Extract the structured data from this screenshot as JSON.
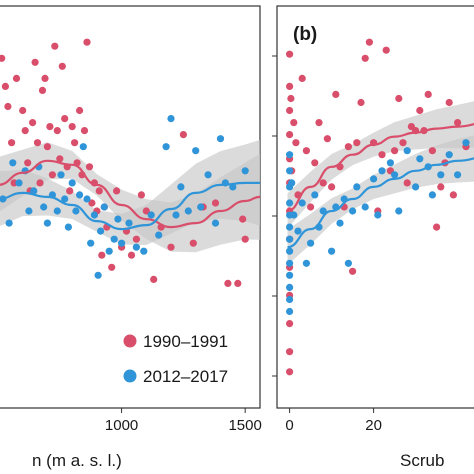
{
  "colors": {
    "series_1990": "#d94e6a",
    "series_2012": "#2f95d8",
    "ribbon": "#c8c8c8",
    "axis": "#333333"
  },
  "chart_data": [
    {
      "type": "scatter",
      "panel_label": "",
      "xlabel": "n (m a. s. l.)",
      "ylabel": "",
      "xlim": [
        500,
        1560
      ],
      "ylim": [
        0,
        10
      ],
      "x_ticks": [
        {
          "value": 1000,
          "label": "1000"
        },
        {
          "value": 1500,
          "label": "1500"
        }
      ],
      "y_ticks": [],
      "grid": false,
      "legend_position": "bottom-right",
      "series": [
        {
          "name": "1990–1991",
          "color": "#d94e6a",
          "points": [
            [
              515,
              8.7
            ],
            [
              530,
              8.0
            ],
            [
              540,
              7.5
            ],
            [
              555,
              6.6
            ],
            [
              565,
              5.6
            ],
            [
              575,
              8.2
            ],
            [
              600,
              7.4
            ],
            [
              610,
              6.9
            ],
            [
              620,
              6.1
            ],
            [
              630,
              5.4
            ],
            [
              640,
              7.1
            ],
            [
              650,
              8.6
            ],
            [
              660,
              6.6
            ],
            [
              670,
              5.6
            ],
            [
              680,
              7.9
            ],
            [
              690,
              8.2
            ],
            [
              700,
              6.5
            ],
            [
              710,
              7.0
            ],
            [
              720,
              5.8
            ],
            [
              730,
              9.0
            ],
            [
              740,
              6.9
            ],
            [
              750,
              6.2
            ],
            [
              760,
              8.5
            ],
            [
              770,
              7.2
            ],
            [
              780,
              6.0
            ],
            [
              790,
              5.4
            ],
            [
              800,
              7.0
            ],
            [
              810,
              6.6
            ],
            [
              820,
              6.1
            ],
            [
              830,
              7.4
            ],
            [
              840,
              5.8
            ],
            [
              850,
              6.9
            ],
            [
              860,
              9.1
            ],
            [
              870,
              6.0
            ],
            [
              880,
              5.1
            ],
            [
              890,
              5.6
            ],
            [
              900,
              4.9
            ],
            [
              910,
              5.4
            ],
            [
              920,
              3.8
            ],
            [
              930,
              5.0
            ],
            [
              940,
              4.5
            ],
            [
              960,
              3.5
            ],
            [
              980,
              5.4
            ],
            [
              1000,
              4.0
            ],
            [
              1020,
              4.4
            ],
            [
              1040,
              3.8
            ],
            [
              1060,
              4.2
            ],
            [
              1080,
              5.3
            ],
            [
              1100,
              4.9
            ],
            [
              1130,
              3.2
            ],
            [
              1160,
              4.5
            ],
            [
              1200,
              4.0
            ],
            [
              1250,
              6.8
            ],
            [
              1290,
              4.1
            ],
            [
              1330,
              5.0
            ],
            [
              1380,
              5.1
            ],
            [
              1430,
              3.1
            ],
            [
              1470,
              3.1
            ],
            [
              1490,
              4.7
            ],
            [
              1500,
              4.2
            ]
          ],
          "smooth": [
            [
              500,
              5.55
            ],
            [
              600,
              5.85
            ],
            [
              700,
              6.15
            ],
            [
              800,
              6.05
            ],
            [
              900,
              5.55
            ],
            [
              1000,
              5.05
            ],
            [
              1100,
              4.7
            ],
            [
              1200,
              4.5
            ],
            [
              1300,
              4.6
            ],
            [
              1400,
              4.9
            ],
            [
              1500,
              5.15
            ],
            [
              1560,
              5.25
            ]
          ]
        },
        {
          "name": "2012–2017",
          "color": "#2f95d8",
          "points": [
            [
              520,
              5.2
            ],
            [
              545,
              4.6
            ],
            [
              560,
              6.1
            ],
            [
              585,
              5.6
            ],
            [
              610,
              5.9
            ],
            [
              625,
              4.9
            ],
            [
              645,
              5.4
            ],
            [
              665,
              6.0
            ],
            [
              685,
              5.0
            ],
            [
              700,
              4.6
            ],
            [
              720,
              5.3
            ],
            [
              740,
              4.9
            ],
            [
              755,
              5.8
            ],
            [
              770,
              5.2
            ],
            [
              785,
              4.5
            ],
            [
              800,
              5.6
            ],
            [
              815,
              4.9
            ],
            [
              830,
              5.3
            ],
            [
              845,
              6.5
            ],
            [
              860,
              5.2
            ],
            [
              875,
              4.1
            ],
            [
              890,
              4.8
            ],
            [
              905,
              3.3
            ],
            [
              915,
              4.4
            ],
            [
              930,
              5.0
            ],
            [
              950,
              3.9
            ],
            [
              970,
              4.2
            ],
            [
              985,
              4.7
            ],
            [
              1000,
              4.1
            ],
            [
              1030,
              4.6
            ],
            [
              1060,
              4.0
            ],
            [
              1090,
              3.9
            ],
            [
              1120,
              4.8
            ],
            [
              1150,
              4.3
            ],
            [
              1180,
              6.5
            ],
            [
              1200,
              7.2
            ],
            [
              1220,
              4.8
            ],
            [
              1240,
              5.5
            ],
            [
              1270,
              4.9
            ],
            [
              1300,
              6.4
            ],
            [
              1320,
              5.0
            ],
            [
              1350,
              5.8
            ],
            [
              1380,
              4.6
            ],
            [
              1400,
              6.7
            ],
            [
              1420,
              5.6
            ],
            [
              1450,
              5.5
            ],
            [
              1500,
              5.9
            ]
          ],
          "smooth": [
            [
              500,
              5.2
            ],
            [
              600,
              5.35
            ],
            [
              700,
              5.25
            ],
            [
              800,
              5.05
            ],
            [
              900,
              4.65
            ],
            [
              1000,
              4.45
            ],
            [
              1100,
              4.55
            ],
            [
              1200,
              4.95
            ],
            [
              1300,
              5.35
            ],
            [
              1400,
              5.55
            ],
            [
              1500,
              5.6
            ],
            [
              1560,
              5.6
            ]
          ]
        }
      ]
    },
    {
      "type": "scatter",
      "panel_label": "(b)",
      "xlabel": "Scrub",
      "ylabel": "",
      "xlim": [
        -3,
        47
      ],
      "ylim": [
        0,
        10
      ],
      "x_ticks": [
        {
          "value": 0,
          "label": "0"
        },
        {
          "value": 20,
          "label": "20"
        }
      ],
      "y_ticks": [],
      "grid": false,
      "legend_position": "",
      "series": [
        {
          "name": "1990–1991",
          "color": "#d94e6a",
          "points": [
            [
              0,
              8.8
            ],
            [
              0,
              8.0
            ],
            [
              0,
              7.4
            ],
            [
              0,
              6.8
            ],
            [
              0,
              6.2
            ],
            [
              0,
              5.6
            ],
            [
              0,
              4.9
            ],
            [
              0,
              4.2
            ],
            [
              0,
              3.5
            ],
            [
              0,
              2.8
            ],
            [
              0,
              2.1
            ],
            [
              0,
              1.4
            ],
            [
              0,
              0.9
            ],
            [
              0.3,
              7.7
            ],
            [
              0.5,
              5.9
            ],
            [
              1,
              7.1
            ],
            [
              1.5,
              6.6
            ],
            [
              2,
              5.3
            ],
            [
              3,
              8.2
            ],
            [
              4,
              6.4
            ],
            [
              5,
              5.0
            ],
            [
              6,
              6.1
            ],
            [
              7,
              7.1
            ],
            [
              8,
              5.6
            ],
            [
              9,
              6.7
            ],
            [
              10,
              5.5
            ],
            [
              11,
              7.8
            ],
            [
              12,
              6.0
            ],
            [
              13,
              5.0
            ],
            [
              14,
              6.5
            ],
            [
              15,
              3.4
            ],
            [
              16,
              6.6
            ],
            [
              17,
              7.6
            ],
            [
              18,
              8.7
            ],
            [
              19,
              9.1
            ],
            [
              20,
              6.6
            ],
            [
              21,
              4.9
            ],
            [
              22,
              6.3
            ],
            [
              23,
              8.9
            ],
            [
              24,
              5.9
            ],
            [
              25,
              6.4
            ],
            [
              26,
              7.7
            ],
            [
              27,
              6.6
            ],
            [
              28,
              5.6
            ],
            [
              29,
              7.0
            ],
            [
              30,
              6.9
            ],
            [
              31,
              7.4
            ],
            [
              32,
              6.9
            ],
            [
              33,
              7.8
            ],
            [
              34,
              6.4
            ],
            [
              35,
              4.5
            ],
            [
              36,
              5.5
            ],
            [
              37,
              6.1
            ],
            [
              38,
              7.6
            ],
            [
              39,
              5.3
            ],
            [
              40,
              7.1
            ],
            [
              42,
              6.5
            ],
            [
              44,
              5.4
            ]
          ],
          "smooth": [
            [
              -0.5,
              4.9
            ],
            [
              5,
              5.5
            ],
            [
              10,
              6.0
            ],
            [
              15,
              6.3
            ],
            [
              20,
              6.55
            ],
            [
              25,
              6.75
            ],
            [
              30,
              6.85
            ],
            [
              35,
              6.95
            ],
            [
              40,
              7.0
            ],
            [
              47,
              7.1
            ]
          ]
        },
        {
          "name": "2012–2017",
          "color": "#2f95d8",
          "points": [
            [
              0,
              6.3
            ],
            [
              0,
              5.9
            ],
            [
              0,
              5.5
            ],
            [
              0,
              5.1
            ],
            [
              0,
              4.8
            ],
            [
              0,
              4.5
            ],
            [
              0,
              4.2
            ],
            [
              0,
              3.9
            ],
            [
              0,
              3.6
            ],
            [
              0,
              3.3
            ],
            [
              0,
              3.0
            ],
            [
              0,
              2.7
            ],
            [
              0,
              2.4
            ],
            [
              0.5,
              5.6
            ],
            [
              1,
              4.8
            ],
            [
              2,
              4.4
            ],
            [
              3,
              5.1
            ],
            [
              4,
              3.6
            ],
            [
              5,
              4.1
            ],
            [
              6,
              5.3
            ],
            [
              7,
              4.5
            ],
            [
              8,
              4.9
            ],
            [
              10,
              3.9
            ],
            [
              11,
              5.0
            ],
            [
              12,
              4.6
            ],
            [
              13,
              5.2
            ],
            [
              14,
              3.6
            ],
            [
              15,
              4.9
            ],
            [
              16,
              5.5
            ],
            [
              18,
              5.0
            ],
            [
              20,
              5.7
            ],
            [
              21,
              4.8
            ],
            [
              22,
              5.9
            ],
            [
              24,
              6.1
            ],
            [
              25,
              5.8
            ],
            [
              26,
              4.9
            ],
            [
              28,
              6.4
            ],
            [
              30,
              5.5
            ],
            [
              31,
              6.2
            ],
            [
              33,
              6.0
            ],
            [
              34,
              5.3
            ],
            [
              36,
              5.8
            ],
            [
              38,
              6.3
            ],
            [
              40,
              5.8
            ],
            [
              42,
              6.6
            ],
            [
              44,
              6.1
            ]
          ],
          "smooth": [
            [
              -0.5,
              4.0
            ],
            [
              5,
              4.45
            ],
            [
              10,
              4.9
            ],
            [
              15,
              5.2
            ],
            [
              20,
              5.5
            ],
            [
              25,
              5.7
            ],
            [
              30,
              5.9
            ],
            [
              35,
              6.05
            ],
            [
              40,
              6.15
            ],
            [
              47,
              6.25
            ]
          ]
        }
      ]
    }
  ]
}
